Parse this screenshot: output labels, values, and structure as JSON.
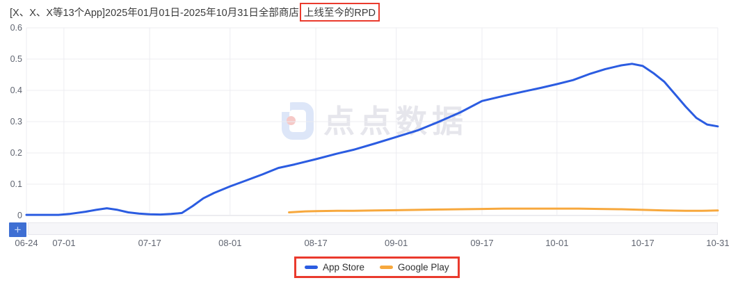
{
  "title": {
    "prefix": "[X、X、X等13个App]2025年01月01日-2025年10月31日全部商店",
    "highlighted": "上线至今的RPD"
  },
  "watermark": {
    "text": "点点数据",
    "logo": "diandian-logo"
  },
  "zoom_controls": {
    "zoom_in_label": "+"
  },
  "legend": {
    "items": [
      {
        "label": "App Store",
        "color": "#2b5ce1"
      },
      {
        "label": "Google Play",
        "color": "#f7a83d"
      }
    ]
  },
  "colors": {
    "app_store_line": "#2b5ce1",
    "google_play_line": "#f7a83d",
    "annotation_box": "#ea3a2d",
    "grid_line": "#ececf1",
    "axis_line": "#d9d9e0",
    "axis_text": "#5f6470",
    "zoom_button_bg": "#3e6fd3"
  },
  "chart_data": {
    "type": "line",
    "title": "[X、X、X等13个App]2025年01月01日-2025年10月31日全部商店上线至今的RPD",
    "xlabel": "",
    "ylabel": "",
    "ylim": [
      0,
      0.6
    ],
    "grid": true,
    "legend_position": "bottom",
    "x_range_days": 129,
    "x_ticks": [
      {
        "label": "06-24",
        "day": 0
      },
      {
        "label": "07-01",
        "day": 7
      },
      {
        "label": "07-17",
        "day": 23
      },
      {
        "label": "08-01",
        "day": 38
      },
      {
        "label": "08-17",
        "day": 54
      },
      {
        "label": "09-01",
        "day": 69
      },
      {
        "label": "09-17",
        "day": 85
      },
      {
        "label": "10-01",
        "day": 99
      },
      {
        "label": "10-17",
        "day": 115
      },
      {
        "label": "10-31",
        "day": 129
      }
    ],
    "y_ticks": {
      "labels": [
        "0.6",
        "0.5",
        "0.4",
        "0.3",
        "0.2",
        "0.1",
        "0"
      ],
      "values": [
        0.6,
        0.5,
        0.4,
        0.3,
        0.2,
        0.1,
        0
      ]
    },
    "series": [
      {
        "id": "app-store",
        "name": "App Store",
        "color": "#2b5ce1",
        "points": [
          [
            0,
            0.002
          ],
          [
            3,
            0.002
          ],
          [
            6,
            0.002
          ],
          [
            8,
            0.005
          ],
          [
            11,
            0.012
          ],
          [
            13,
            0.018
          ],
          [
            15,
            0.023
          ],
          [
            17,
            0.018
          ],
          [
            19,
            0.01
          ],
          [
            21,
            0.006
          ],
          [
            23,
            0.004
          ],
          [
            25,
            0.003
          ],
          [
            27,
            0.005
          ],
          [
            29,
            0.008
          ],
          [
            31,
            0.03
          ],
          [
            33,
            0.055
          ],
          [
            35,
            0.072
          ],
          [
            38,
            0.093
          ],
          [
            41,
            0.112
          ],
          [
            44,
            0.131
          ],
          [
            47,
            0.152
          ],
          [
            50,
            0.163
          ],
          [
            54,
            0.18
          ],
          [
            58,
            0.198
          ],
          [
            61,
            0.21
          ],
          [
            65,
            0.23
          ],
          [
            69,
            0.251
          ],
          [
            73,
            0.272
          ],
          [
            77,
            0.3
          ],
          [
            81,
            0.33
          ],
          [
            85,
            0.366
          ],
          [
            89,
            0.382
          ],
          [
            93,
            0.397
          ],
          [
            96,
            0.408
          ],
          [
            99,
            0.42
          ],
          [
            102,
            0.433
          ],
          [
            105,
            0.452
          ],
          [
            108,
            0.468
          ],
          [
            111,
            0.48
          ],
          [
            113,
            0.485
          ],
          [
            115,
            0.478
          ],
          [
            117,
            0.455
          ],
          [
            119,
            0.428
          ],
          [
            121,
            0.388
          ],
          [
            123,
            0.348
          ],
          [
            125,
            0.312
          ],
          [
            127,
            0.291
          ],
          [
            129,
            0.285
          ]
        ]
      },
      {
        "id": "google-play",
        "name": "Google Play",
        "color": "#f7a83d",
        "points": [
          [
            49,
            0.01
          ],
          [
            52,
            0.013
          ],
          [
            54,
            0.014
          ],
          [
            58,
            0.015
          ],
          [
            61,
            0.015
          ],
          [
            65,
            0.016
          ],
          [
            69,
            0.017
          ],
          [
            73,
            0.018
          ],
          [
            77,
            0.019
          ],
          [
            81,
            0.02
          ],
          [
            85,
            0.021
          ],
          [
            89,
            0.022
          ],
          [
            93,
            0.022
          ],
          [
            99,
            0.022
          ],
          [
            103,
            0.022
          ],
          [
            107,
            0.021
          ],
          [
            111,
            0.02
          ],
          [
            115,
            0.018
          ],
          [
            119,
            0.016
          ],
          [
            123,
            0.015
          ],
          [
            126,
            0.015
          ],
          [
            129,
            0.016
          ]
        ]
      }
    ]
  }
}
